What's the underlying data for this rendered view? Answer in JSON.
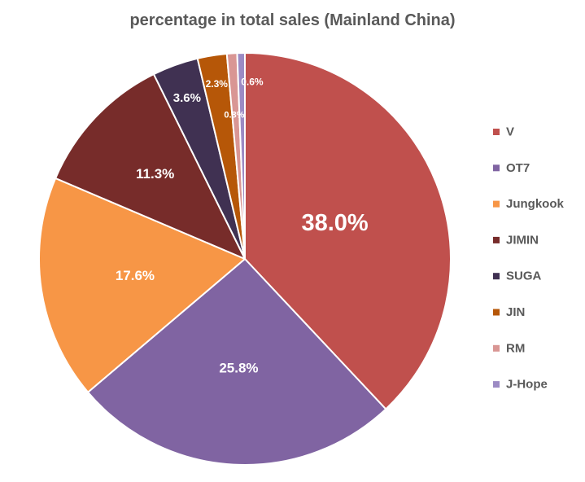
{
  "chart_data": {
    "type": "pie",
    "title": "percentage in total sales (Mainland China)",
    "legend_position": "right",
    "slices": [
      {
        "name": "V",
        "value": 38.0,
        "label": "38.0%",
        "color": "#c0504d"
      },
      {
        "name": "OT7",
        "value": 25.8,
        "label": "25.8%",
        "color": "#8064a2"
      },
      {
        "name": "Jungkook",
        "value": 17.6,
        "label": "17.6%",
        "color": "#f79646"
      },
      {
        "name": "JIMIN",
        "value": 11.3,
        "label": "11.3%",
        "color": "#772c2a"
      },
      {
        "name": "SUGA",
        "value": 3.6,
        "label": "3.6%",
        "color": "#403152"
      },
      {
        "name": "JIN",
        "value": 2.3,
        "label": "2.3%",
        "color": "#b65708"
      },
      {
        "name": "RM",
        "value": 0.8,
        "label": "0.8%",
        "color": "#d99694"
      },
      {
        "name": "J-Hope",
        "value": 0.6,
        "label": "0.6%",
        "color": "#9c8bc4"
      }
    ]
  }
}
